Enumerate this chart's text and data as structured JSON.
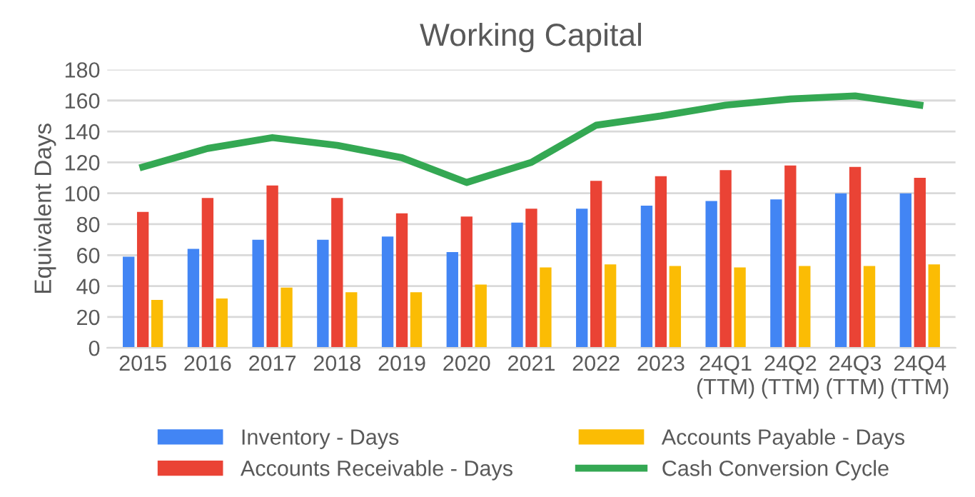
{
  "chart_data": {
    "type": "bar",
    "title": "Working Capital",
    "ylabel": "Equivalent Days",
    "categories": [
      "2015",
      "2016",
      "2017",
      "2018",
      "2019",
      "2020",
      "2021",
      "2022",
      "2023",
      "24Q1\n(TTM)",
      "24Q2\n(TTM)",
      "24Q3\n(TTM)",
      "24Q4\n(TTM)"
    ],
    "series": [
      {
        "name": "Inventory - Days",
        "color": "#4285f4",
        "values": [
          59,
          64,
          70,
          70,
          72,
          62,
          81,
          90,
          92,
          95,
          96,
          100,
          100
        ]
      },
      {
        "name": "Accounts Receivable - Days",
        "color": "#ea4335",
        "values": [
          88,
          97,
          105,
          97,
          87,
          85,
          90,
          108,
          111,
          115,
          118,
          117,
          110
        ]
      },
      {
        "name": "Accounts Payable - Days",
        "color": "#fbbc04",
        "values": [
          31,
          32,
          39,
          36,
          36,
          41,
          52,
          54,
          53,
          52,
          53,
          53,
          54
        ]
      },
      {
        "name": "Cash Conversion Cycle",
        "color": "#34a853",
        "type": "line",
        "values": [
          117,
          129,
          136,
          131,
          123,
          107,
          120,
          144,
          150,
          157,
          161,
          163,
          157
        ]
      }
    ],
    "ylim": [
      0,
      180
    ],
    "yticks": [
      0,
      20,
      40,
      60,
      80,
      100,
      120,
      140,
      160,
      180
    ],
    "grid": "y",
    "legend": "bottom"
  }
}
